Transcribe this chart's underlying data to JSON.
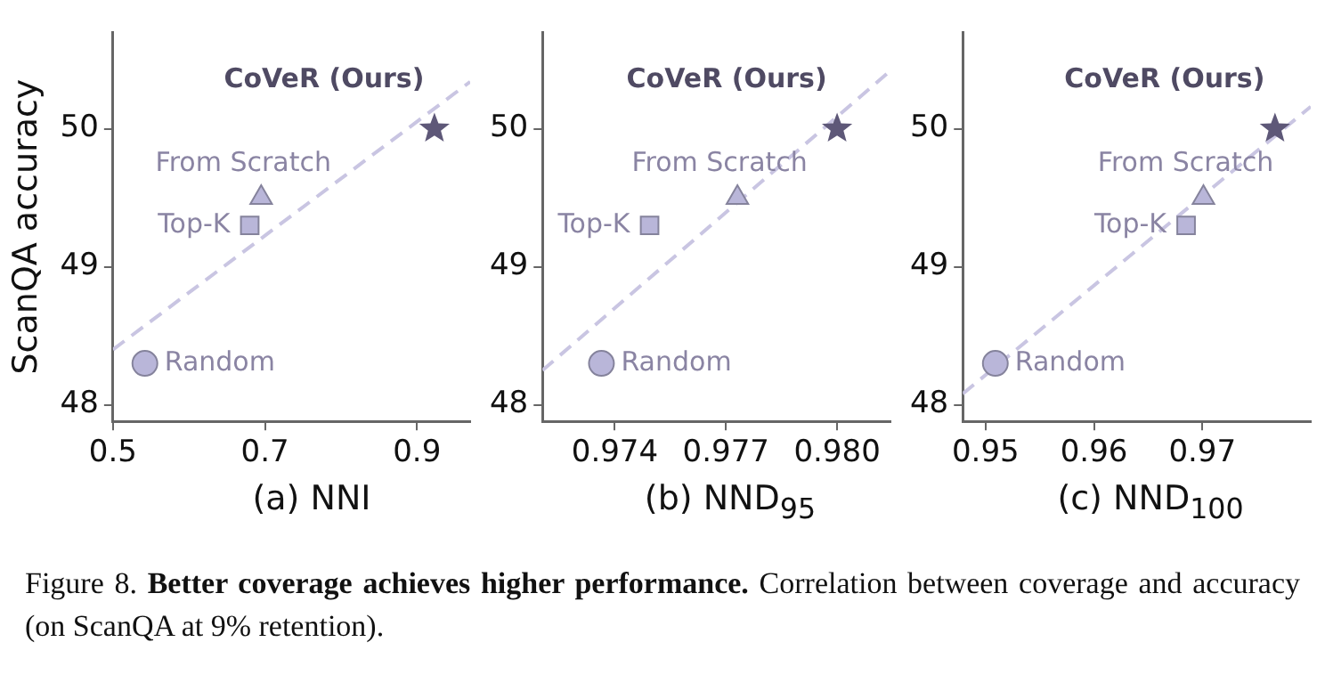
{
  "chart_data": [
    {
      "type": "scatter",
      "xlabel": "(a) NNI",
      "ylabel": "ScanQA accuracy",
      "xlim": [
        0.5,
        0.97
      ],
      "ylim": [
        47.88,
        50.7
      ],
      "xticks": [
        0.5,
        0.7,
        0.9
      ],
      "yticks": [
        48,
        49,
        50
      ],
      "grid": false,
      "legend": false,
      "series": [
        {
          "name": "Random",
          "color": "#b9b6d9",
          "marker": "circle",
          "x": [
            0.542
          ],
          "values": [
            48.3
          ]
        },
        {
          "name": "Top-K",
          "color": "#b9b6d9",
          "marker": "square",
          "x": [
            0.68
          ],
          "values": [
            49.3
          ]
        },
        {
          "name": "From Scratch",
          "color": "#b9b6d9",
          "marker": "triangle",
          "x": [
            0.695
          ],
          "values": [
            49.5
          ]
        },
        {
          "name": "CoVeR (Ours)",
          "color": "#5e5878",
          "marker": "star",
          "x": [
            0.923
          ],
          "values": [
            50
          ]
        },
        {
          "type": "line",
          "color": "#c9c5e2",
          "line_style": "dashed",
          "marker": "none",
          "x": [
            0.5,
            0.97
          ],
          "values": [
            48.4,
            50.34
          ]
        }
      ],
      "annotations": [
        "Figure 8.",
        "Better coverage achieves higher performance.",
        "Correlation between coverage and accuracy (on ScanQA at 9% retention)."
      ]
    },
    {
      "type": "scatter",
      "xlabel": "(b) NND$_{95}$",
      "xlim": [
        0.97205,
        0.98144
      ],
      "ylim": [
        47.88,
        50.7
      ],
      "xticks": [
        0.974,
        0.977,
        {
          "value": 0.98,
          "label": "0.980"
        }
      ],
      "yticks": [
        48,
        49,
        50
      ],
      "grid": false,
      "legend": false,
      "series": [
        {
          "name": "Random",
          "color": "#b9b6d9",
          "marker": "circle",
          "x": [
            0.97364
          ],
          "values": [
            48.3
          ]
        },
        {
          "name": "Top-K",
          "color": "#b9b6d9",
          "marker": "square",
          "x": [
            0.97494
          ],
          "values": [
            49.3
          ]
        },
        {
          "name": "From Scratch",
          "color": "#b9b6d9",
          "marker": "triangle",
          "x": [
            0.97731
          ],
          "values": [
            49.5
          ]
        },
        {
          "name": "CoVeR (Ours)",
          "color": "#5e5878",
          "marker": "star",
          "x": [
            0.98
          ],
          "values": [
            50
          ]
        },
        {
          "type": "line",
          "color": "#c9c5e2",
          "line_style": "dashed",
          "marker": "none",
          "x": [
            0.97205,
            0.98144
          ],
          "values": [
            48.25,
            50.42
          ]
        }
      ]
    },
    {
      "type": "scatter",
      "xlabel": "(c) NND$_{100}$",
      "xlim": [
        0.9479,
        0.98
      ],
      "ylim": [
        47.88,
        50.7
      ],
      "xticks": [
        0.95,
        0.96,
        0.97
      ],
      "yticks": [
        48,
        49,
        50
      ],
      "grid": false,
      "legend": false,
      "series": [
        {
          "name": "Random",
          "color": "#b9b6d9",
          "marker": "circle",
          "x": [
            0.9509
          ],
          "values": [
            48.3
          ]
        },
        {
          "name": "Top-K",
          "color": "#b9b6d9",
          "marker": "square",
          "x": [
            0.9685
          ],
          "values": [
            49.3
          ]
        },
        {
          "name": "From Scratch",
          "color": "#b9b6d9",
          "marker": "triangle",
          "x": [
            0.9701
          ],
          "values": [
            49.5
          ]
        },
        {
          "name": "CoVeR (Ours)",
          "color": "#5e5878",
          "marker": "star",
          "x": [
            0.9767
          ],
          "values": [
            50
          ]
        },
        {
          "type": "line",
          "color": "#c9c5e2",
          "line_style": "dashed",
          "marker": "none",
          "x": [
            0.9479,
            0.98
          ],
          "values": [
            48.08,
            50.16
          ]
        }
      ]
    }
  ]
}
